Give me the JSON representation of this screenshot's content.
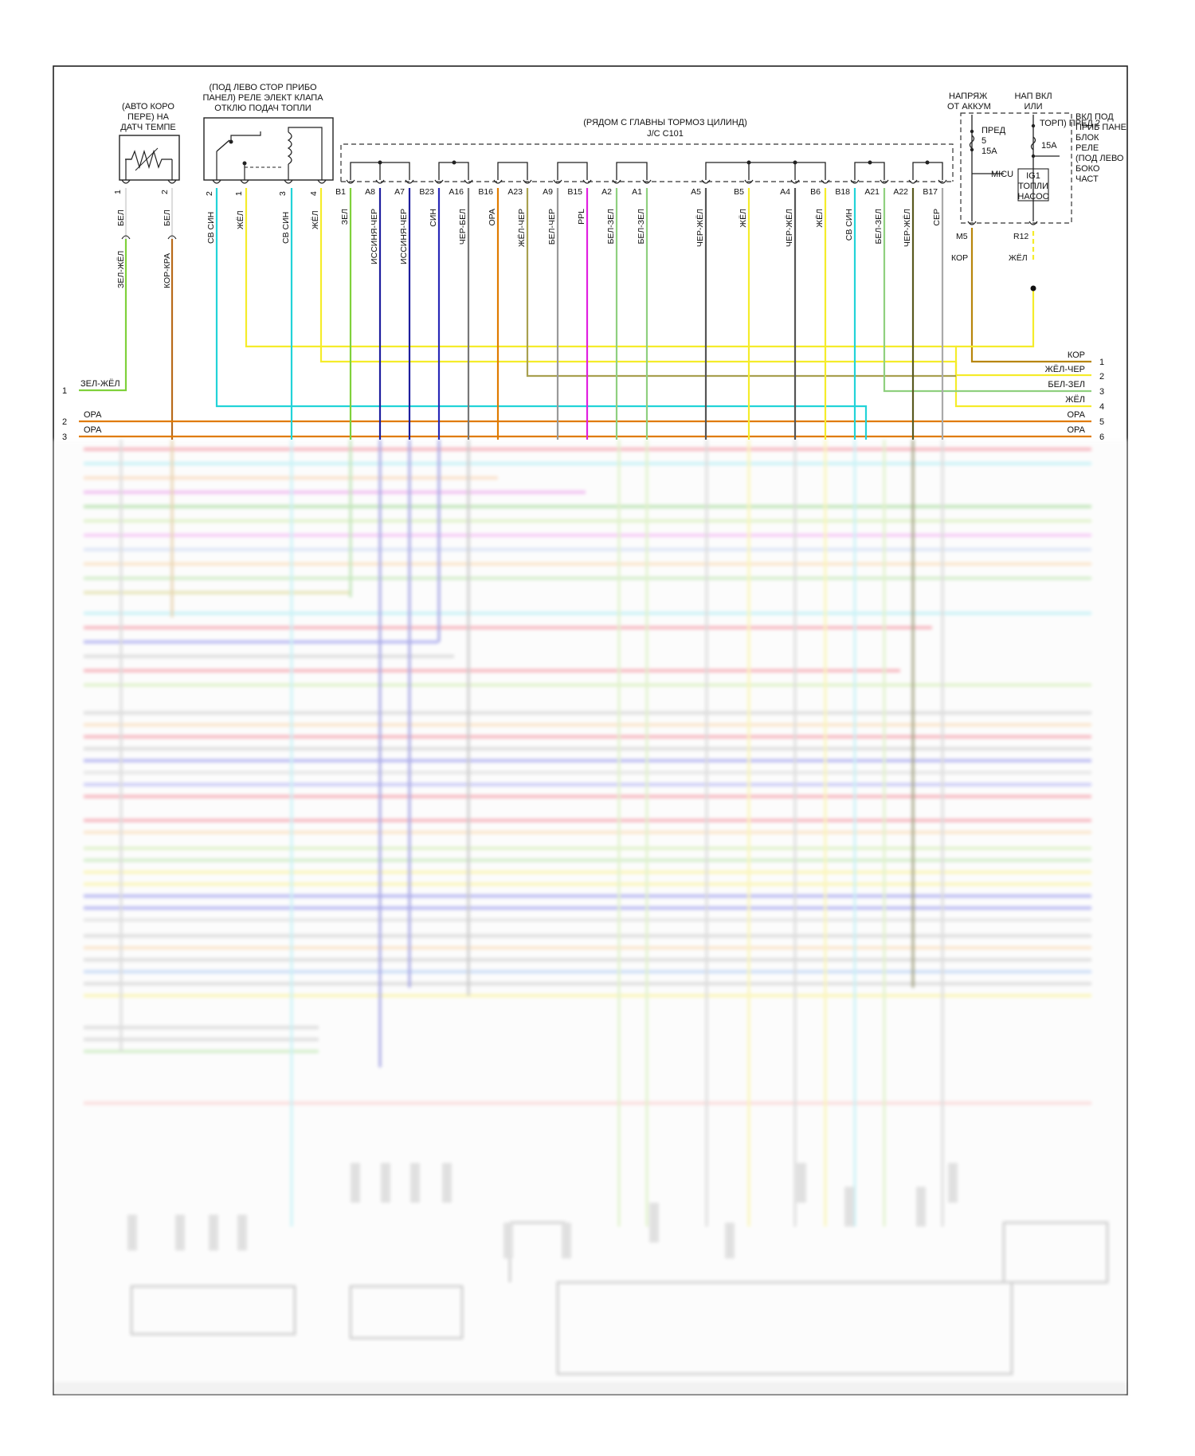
{
  "components": {
    "temp_sensor": {
      "label_lines": [
        "(АВТО КОРО",
        "ПЕРЕ) НА",
        "ДАТЧ ТЕМПЕ"
      ],
      "pins": [
        "1",
        "2"
      ]
    },
    "relay": {
      "label_lines": [
        "(ПОД ЛЕВО СТОР ПРИБО",
        "ПАНЕЛ) РЕЛЕ ЭЛЕКТ КЛАПА",
        "ОТКЛЮ ПОДАЧ ТОПЛИ"
      ],
      "pins": [
        "2",
        "1",
        "3",
        "4"
      ]
    },
    "junction": {
      "label_lines": [
        "(РЯДОМ С ГЛАВНЫ ТОРМОЗ ЦИЛИНД)",
        "J/C C101"
      ]
    },
    "fuse_box": {
      "left_header_lines": [
        "НАПРЯЖ",
        "ОТ АККУМ"
      ],
      "mid_header_lines": [
        "НАП ВКЛ",
        "ИЛИ"
      ],
      "right_label_lines": [
        "ВКЛ ПОД",
        "ПРИБ ПАНЕ",
        "БЛОК",
        "РЕЛЕ",
        "(ПОД ЛЕВО",
        "БОКО",
        "ЧАСТ"
      ],
      "torp_label": "ТОРП) ПРЕД 2",
      "fuse1_lines": [
        "ПРЕД",
        "5",
        "15A"
      ],
      "fuse2_label": "15A",
      "micu": "MICU",
      "ig1_lines": [
        "IG1",
        "ТОПЛИ",
        "НАСОС"
      ],
      "pins": [
        "M5",
        "R12"
      ],
      "wire_colors": [
        "КОР",
        "ЖЁЛ"
      ]
    }
  },
  "sensor_wires": [
    "БЕЛ",
    "БЕЛ"
  ],
  "sensor_wires_lower": [
    "ЗЕЛ-ЖЁЛ",
    "КОР-КРА"
  ],
  "relay_wires": [
    "СВ СИН",
    "ЖЁЛ",
    "СВ СИН",
    "ЖЁЛ"
  ],
  "junction_pins": [
    "B1",
    "A8",
    "A7",
    "B23",
    "A16",
    "B16",
    "A23",
    "A9",
    "B15",
    "A2",
    "A1",
    "A5",
    "B5",
    "A4",
    "B6",
    "B18",
    "A21",
    "A22",
    "B17"
  ],
  "junction_wires": [
    "ЗЕЛ",
    "ИССИНЯ-ЧЕР",
    "ИССИНЯ-ЧЕР",
    "СИН",
    "ЧЕР-БЕЛ",
    "ОРА",
    "ЖЁЛ-ЧЕР",
    "БЕЛ-ЧЕР",
    "PPL",
    "БЕЛ-ЗЕЛ",
    "БЕЛ-ЗЕЛ",
    "ЧЕР-ЖЁЛ",
    "ЖЁЛ",
    "ЧЕР-ЖЁЛ",
    "ЖЁЛ",
    "СВ СИН",
    "БЕЛ-ЗЕЛ",
    "ЧЕР-ЖЁЛ",
    "СЕР"
  ],
  "left_bus": [
    {
      "num": "1",
      "label": "ЗЕЛ-ЖЁЛ"
    },
    {
      "num": "2",
      "label": "ОРА"
    },
    {
      "num": "3",
      "label": "ОРА"
    }
  ],
  "right_bus": [
    {
      "num": "1",
      "label": "КОР"
    },
    {
      "num": "2",
      "label": "ЖЁЛ-ЧЕР"
    },
    {
      "num": "3",
      "label": "БЕЛ-ЗЕЛ"
    },
    {
      "num": "4",
      "label": "ЖЁЛ"
    },
    {
      "num": "5",
      "label": "ОРА"
    },
    {
      "num": "6",
      "label": "ОРА"
    }
  ],
  "colors": {
    "green": "#7fd13b",
    "brown": "#b8860b",
    "orange": "#e07b00",
    "cyan": "#22d3d8",
    "yellow": "#f5ec2a",
    "darkblue": "#2a2ab8",
    "gray": "#888888",
    "olive": "#a8a050",
    "lightgreen": "#8fd07f",
    "magenta": "#e020e0",
    "darkolive": "#5a5a20",
    "black": "#111111"
  }
}
